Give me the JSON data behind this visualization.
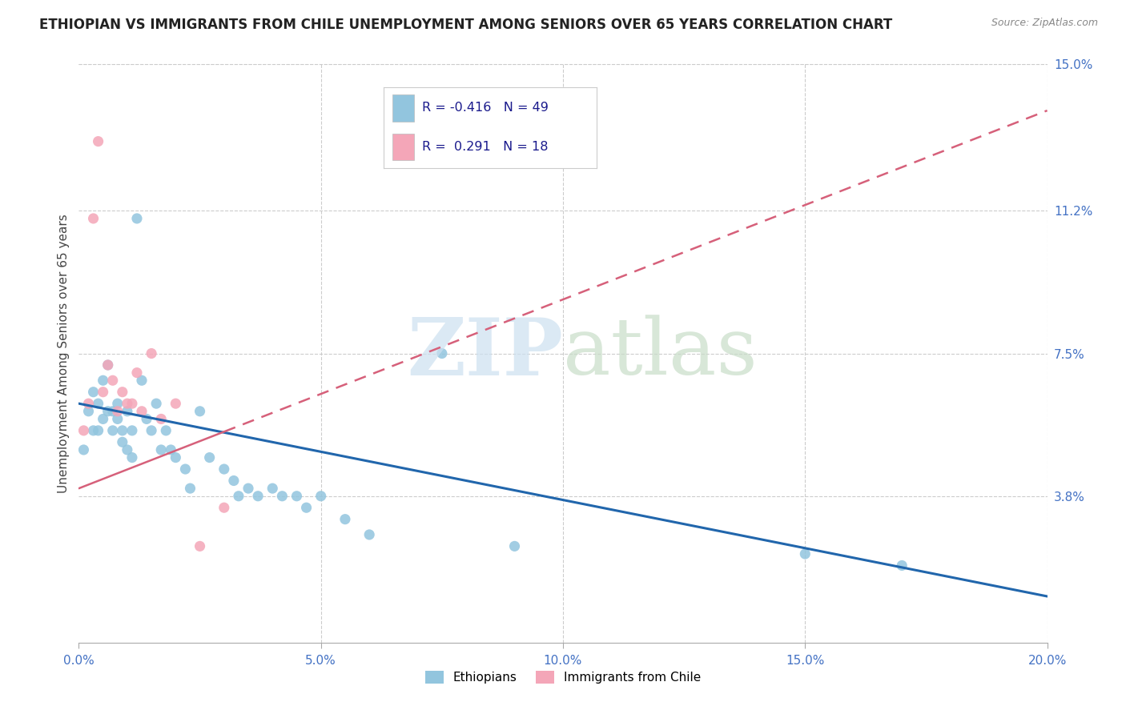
{
  "title": "ETHIOPIAN VS IMMIGRANTS FROM CHILE UNEMPLOYMENT AMONG SENIORS OVER 65 YEARS CORRELATION CHART",
  "source": "Source: ZipAtlas.com",
  "ylabel": "Unemployment Among Seniors over 65 years",
  "xlim": [
    0.0,
    0.2
  ],
  "ylim": [
    0.0,
    0.15
  ],
  "xtick_labels": [
    "0.0%",
    "5.0%",
    "10.0%",
    "15.0%",
    "20.0%"
  ],
  "xtick_vals": [
    0.0,
    0.05,
    0.1,
    0.15,
    0.2
  ],
  "ytick_labels_right": [
    "15.0%",
    "11.2%",
    "7.5%",
    "3.8%",
    ""
  ],
  "ytick_vals_right": [
    0.15,
    0.112,
    0.075,
    0.038,
    0.0
  ],
  "legend_r_blue": "-0.416",
  "legend_n_blue": "49",
  "legend_r_pink": " 0.291",
  "legend_n_pink": "18",
  "blue_color": "#92c5de",
  "pink_color": "#f4a6b8",
  "line_blue_color": "#2166ac",
  "line_pink_color": "#d6607a",
  "ethiopians_x": [
    0.001,
    0.002,
    0.003,
    0.003,
    0.004,
    0.004,
    0.005,
    0.005,
    0.006,
    0.006,
    0.007,
    0.007,
    0.008,
    0.008,
    0.009,
    0.009,
    0.01,
    0.01,
    0.011,
    0.011,
    0.012,
    0.013,
    0.014,
    0.015,
    0.016,
    0.017,
    0.018,
    0.019,
    0.02,
    0.022,
    0.023,
    0.025,
    0.027,
    0.03,
    0.032,
    0.033,
    0.035,
    0.037,
    0.04,
    0.042,
    0.045,
    0.047,
    0.05,
    0.055,
    0.06,
    0.075,
    0.09,
    0.15,
    0.17
  ],
  "ethiopians_y": [
    0.05,
    0.06,
    0.055,
    0.065,
    0.055,
    0.062,
    0.058,
    0.068,
    0.06,
    0.072,
    0.06,
    0.055,
    0.062,
    0.058,
    0.055,
    0.052,
    0.05,
    0.06,
    0.048,
    0.055,
    0.11,
    0.068,
    0.058,
    0.055,
    0.062,
    0.05,
    0.055,
    0.05,
    0.048,
    0.045,
    0.04,
    0.06,
    0.048,
    0.045,
    0.042,
    0.038,
    0.04,
    0.038,
    0.04,
    0.038,
    0.038,
    0.035,
    0.038,
    0.032,
    0.028,
    0.075,
    0.025,
    0.023,
    0.02
  ],
  "chile_x": [
    0.001,
    0.002,
    0.003,
    0.004,
    0.005,
    0.006,
    0.007,
    0.008,
    0.009,
    0.01,
    0.011,
    0.012,
    0.013,
    0.015,
    0.017,
    0.02,
    0.025,
    0.03
  ],
  "chile_y": [
    0.055,
    0.062,
    0.11,
    0.13,
    0.065,
    0.072,
    0.068,
    0.06,
    0.065,
    0.062,
    0.062,
    0.07,
    0.06,
    0.075,
    0.058,
    0.062,
    0.025,
    0.035
  ],
  "blue_line_x0": 0.0,
  "blue_line_y0": 0.062,
  "blue_line_x1": 0.2,
  "blue_line_y1": 0.012,
  "pink_line_x0": 0.0,
  "pink_line_y0": 0.04,
  "pink_line_x1": 0.2,
  "pink_line_y1": 0.138
}
